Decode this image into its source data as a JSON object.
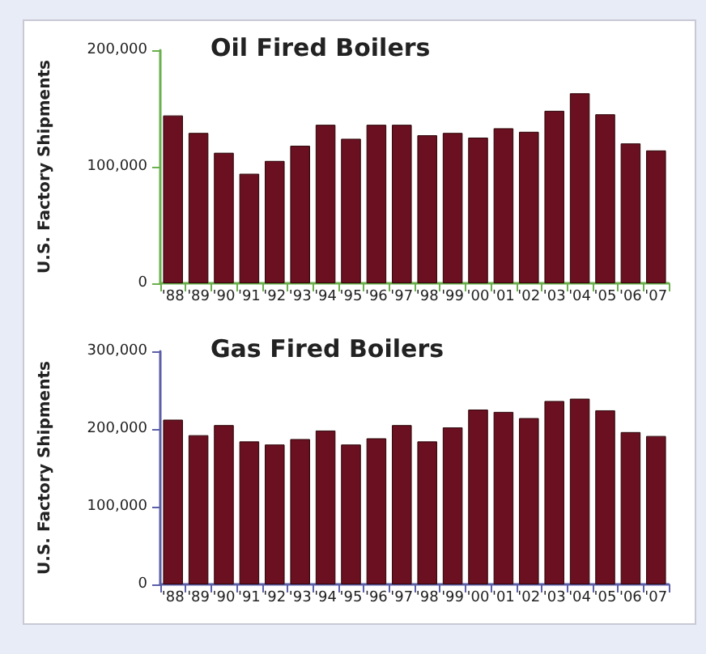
{
  "chart_data": [
    {
      "type": "bar",
      "title": "Oil Fired Boilers",
      "ylabel": "U.S. Factory Shipments",
      "categories": [
        "'88",
        "'89",
        "'90",
        "'91",
        "'92",
        "'93",
        "'94",
        "'95",
        "'96",
        "'97",
        "'98",
        "'99",
        "'00",
        "'01",
        "'02",
        "'03",
        "'04",
        "'05",
        "'06",
        "'07"
      ],
      "series": [
        {
          "color": "#6b1020",
          "values": [
            144000,
            129000,
            112000,
            94000,
            105000,
            118000,
            136000,
            124000,
            136000,
            136000,
            127000,
            129000,
            125000,
            133000,
            130000,
            148000,
            163000,
            145000,
            120000,
            114000
          ]
        }
      ],
      "ylim": [
        0,
        200000
      ],
      "yticks": [
        {
          "value": 0,
          "label": "0"
        },
        {
          "value": 100000,
          "label": "100,000"
        },
        {
          "value": 200000,
          "label": "200,000"
        }
      ],
      "grid": false
    },
    {
      "type": "bar",
      "title": "Gas Fired Boilers",
      "ylabel": "U.S. Factory Shipments",
      "categories": [
        "'88",
        "'89",
        "'90",
        "'91",
        "'92",
        "'93",
        "'94",
        "'95",
        "'96",
        "'97",
        "'98",
        "'99",
        "'00",
        "'01",
        "'02",
        "'03",
        "'04",
        "'05",
        "'06",
        "'07"
      ],
      "series": [
        {
          "color": "#6b1020",
          "values": [
            212000,
            192000,
            205000,
            184000,
            180000,
            187000,
            198000,
            180000,
            188000,
            205000,
            184000,
            202000,
            225000,
            222000,
            214000,
            236000,
            239000,
            224000,
            196000,
            191000
          ]
        }
      ],
      "ylim": [
        0,
        300000
      ],
      "yticks": [
        {
          "value": 0,
          "label": "0"
        },
        {
          "value": 100000,
          "label": "100,000"
        },
        {
          "value": 200000,
          "label": "200,000"
        },
        {
          "value": 300000,
          "label": "300,000"
        }
      ],
      "grid": false
    }
  ]
}
